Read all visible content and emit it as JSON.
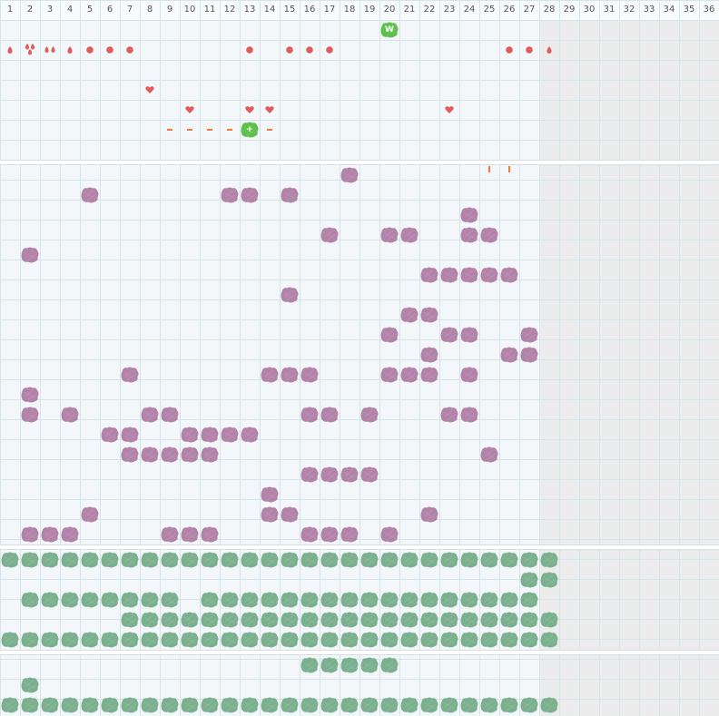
{
  "grid": {
    "columns": [
      "1",
      "2",
      "3",
      "4",
      "5",
      "6",
      "7",
      "8",
      "9",
      "10",
      "11",
      "12",
      "13",
      "14",
      "15",
      "16",
      "17",
      "18",
      "19",
      "20",
      "21",
      "22",
      "23",
      "24",
      "25",
      "26",
      "27",
      "28",
      "29",
      "30",
      "31",
      "32",
      "33",
      "34",
      "35",
      "36"
    ],
    "active_columns": 27
  },
  "colors": {
    "background": "#f3f7f9",
    "grid_line": "#d4e6ec",
    "inactive_area": "#ececec",
    "red_marker": "#e05c5c",
    "orange_marker": "#f07a3a",
    "purple_block": "#b282a8",
    "green_block": "#7bb08f",
    "bright_green": "#5cc04a"
  },
  "top_section": {
    "row1": [
      {
        "col": 20,
        "kind": "wild",
        "label": "W"
      }
    ],
    "row2": [
      {
        "col": 1,
        "kind": "drop"
      },
      {
        "col": 2,
        "kind": "drop-cluster"
      },
      {
        "col": 3,
        "kind": "drop-pair"
      },
      {
        "col": 4,
        "kind": "drop"
      },
      {
        "col": 5,
        "kind": "dot"
      },
      {
        "col": 6,
        "kind": "dot"
      },
      {
        "col": 7,
        "kind": "dot"
      },
      {
        "col": 13,
        "kind": "dot"
      },
      {
        "col": 15,
        "kind": "dot"
      },
      {
        "col": 16,
        "kind": "dot"
      },
      {
        "col": 17,
        "kind": "dot"
      },
      {
        "col": 26,
        "kind": "dot"
      },
      {
        "col": 27,
        "kind": "dot"
      },
      {
        "col": 28,
        "kind": "drop"
      }
    ],
    "row4": [
      {
        "col": 8,
        "kind": "heart"
      }
    ],
    "row5": [
      {
        "col": 10,
        "kind": "heart"
      },
      {
        "col": 13,
        "kind": "heart"
      },
      {
        "col": 14,
        "kind": "heart"
      },
      {
        "col": 23,
        "kind": "heart"
      }
    ],
    "row6": [
      {
        "col": 9,
        "kind": "dash"
      },
      {
        "col": 10,
        "kind": "dash"
      },
      {
        "col": 11,
        "kind": "dash"
      },
      {
        "col": 12,
        "kind": "dash"
      },
      {
        "col": 13,
        "kind": "plus",
        "label": "+"
      },
      {
        "col": 14,
        "kind": "dash"
      }
    ],
    "row8": [
      {
        "col": 25,
        "kind": "tick"
      },
      {
        "col": 26,
        "kind": "tick"
      }
    ]
  },
  "purple_section": [
    [
      18
    ],
    [
      5,
      12,
      13,
      15
    ],
    [
      24
    ],
    [
      17,
      20,
      21,
      24,
      25
    ],
    [
      2
    ],
    [
      22,
      23,
      24,
      25,
      26
    ],
    [
      15
    ],
    [
      21,
      22
    ],
    [
      20,
      23,
      24,
      27
    ],
    [
      22,
      26,
      27
    ],
    [
      7,
      14,
      15,
      16,
      20,
      21,
      22,
      24
    ],
    [
      2
    ],
    [
      2,
      4,
      8,
      9,
      16,
      17,
      19,
      23,
      24
    ],
    [
      6,
      7,
      10,
      11,
      12,
      13
    ],
    [
      7,
      8,
      9,
      10,
      11,
      25
    ],
    [
      16,
      17,
      18,
      19
    ],
    [
      14
    ],
    [
      5,
      14,
      15,
      22
    ],
    [
      2,
      3,
      4,
      9,
      10,
      11,
      16,
      17,
      18,
      20
    ]
  ],
  "green_section": [
    [
      1,
      2,
      3,
      4,
      5,
      6,
      7,
      8,
      9,
      10,
      11,
      12,
      13,
      14,
      15,
      16,
      17,
      18,
      19,
      20,
      21,
      22,
      23,
      24,
      25,
      26,
      27,
      28
    ],
    [
      27,
      28
    ],
    [
      2,
      3,
      4,
      5,
      6,
      7,
      8,
      9,
      11,
      12,
      13,
      14,
      15,
      16,
      17,
      18,
      19,
      20,
      21,
      22,
      23,
      24,
      25,
      26,
      27
    ],
    [
      7,
      8,
      9,
      10,
      11,
      12,
      13,
      14,
      15,
      16,
      17,
      18,
      19,
      20,
      21,
      22,
      23,
      24,
      25,
      26,
      27,
      28
    ],
    [
      1,
      2,
      3,
      4,
      5,
      6,
      7,
      8,
      9,
      10,
      11,
      12,
      13,
      14,
      15,
      16,
      17,
      18,
      19,
      20,
      21,
      22,
      23,
      24,
      25,
      26,
      27,
      28
    ]
  ],
  "bottom_section": [
    [
      16,
      17,
      18,
      19,
      20
    ],
    [
      2
    ],
    [
      1,
      2,
      3,
      4,
      5,
      6,
      7,
      8,
      9,
      10,
      11,
      12,
      13,
      14,
      15,
      16,
      17,
      18,
      19,
      20,
      21,
      22,
      23,
      24,
      25,
      26,
      27,
      28
    ]
  ]
}
